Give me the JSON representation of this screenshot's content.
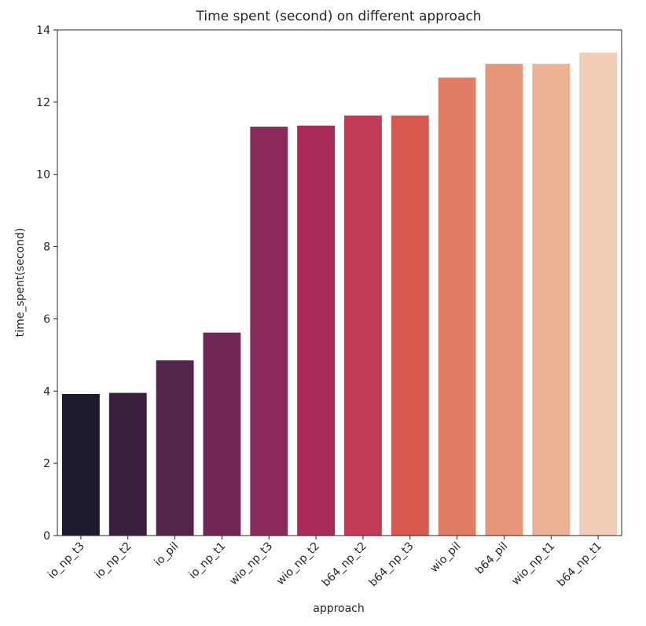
{
  "chart_data": {
    "type": "bar",
    "title": "Time spent (second) on different approach",
    "xlabel": "approach",
    "ylabel": "time_spent(second)",
    "categories": [
      "io_np_t3",
      "io_np_t2",
      "io_pil",
      "io_np_t1",
      "wio_np_t3",
      "wio_np_t2",
      "b64_np_t2",
      "b64_np_t3",
      "wio_pil",
      "b64_pil",
      "wio_np_t1",
      "b64_np_t1"
    ],
    "values": [
      3.92,
      3.95,
      4.85,
      5.62,
      11.32,
      11.35,
      11.63,
      11.63,
      12.68,
      13.06,
      13.06,
      13.37
    ],
    "colors": [
      "#1f1a2e",
      "#3a1e3d",
      "#54244b",
      "#722856",
      "#8a2a5b",
      "#a82a5a",
      "#c23a54",
      "#d6584f",
      "#e07d62",
      "#e6977a",
      "#ebb295",
      "#f2cdb7"
    ],
    "ylim": [
      0,
      14
    ],
    "yticks": [
      0,
      2,
      4,
      6,
      8,
      10,
      12,
      14
    ],
    "grid": false,
    "legend": "none"
  }
}
